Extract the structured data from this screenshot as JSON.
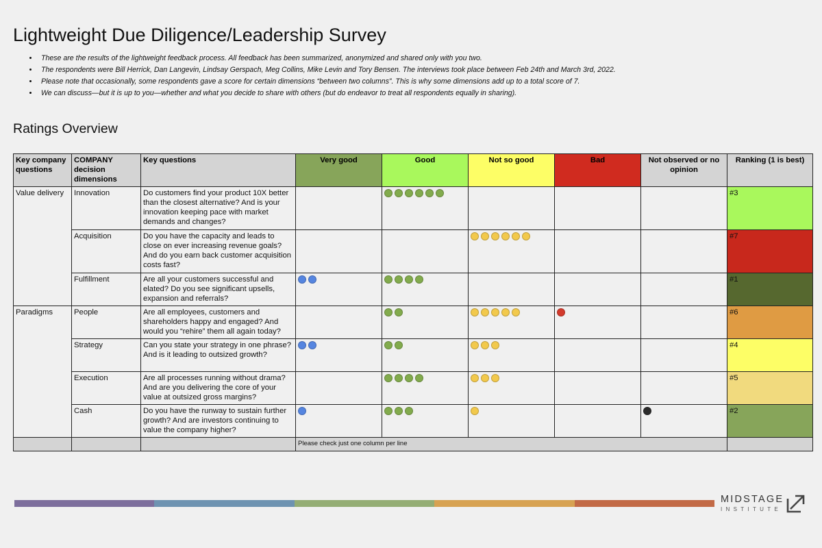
{
  "title": "Lightweight Due Diligence/Leadership Survey",
  "bullets": [
    "These are the results of the lightweight feedback process. All feedback has been summarized, anonymized and shared only with you two.",
    "The respondents were Bill Herrick, Dan Langevin, Lindsay Gerspach, Meg Collins, Mike Levin and Tory Bensen. The interviews took place between Feb 24th and March 3rd, 2022.",
    "Please note that occasionally, some respondents gave a score for certain dimensions “between two columns”. This is why some dimensions add up to a total score of 7.",
    "We can discuss—but it is up to you—whether and what you decide to share with others (but do endeavor to treat all respondents equally in sharing)."
  ],
  "subtitle": "Ratings Overview",
  "table": {
    "headers": [
      {
        "label": "Key company questions",
        "bg": "#d4d4d4",
        "color": "#000000",
        "align": "left"
      },
      {
        "label": "COMPANY decision dimensions",
        "bg": "#d4d4d4",
        "color": "#000000",
        "align": "left"
      },
      {
        "label": "Key questions",
        "bg": "#d4d4d4",
        "color": "#000000",
        "align": "left"
      },
      {
        "label": "Very good",
        "bg": "#87a55a",
        "color": "#000000",
        "align": "center"
      },
      {
        "label": "Good",
        "bg": "#a9f85c",
        "color": "#000000",
        "align": "center"
      },
      {
        "label": "Not so good",
        "bg": "#fdfe66",
        "color": "#000000",
        "align": "center"
      },
      {
        "label": "Bad",
        "bg": "#d02b1f",
        "color": "#000000",
        "align": "center"
      },
      {
        "label": "Not observed or no opinion",
        "bg": "#d4d4d4",
        "color": "#000000",
        "align": "center"
      },
      {
        "label": "Ranking (1 is best)",
        "bg": "#d4d4d4",
        "color": "#000000",
        "align": "center"
      }
    ],
    "groups": [
      {
        "name": "Value delivery",
        "rows": [
          {
            "dimension": "Innovation",
            "question": "Do customers find your product 10X better than the closest alternative? And is your innovation keeping pace with market demands and changes?",
            "very_good": 0,
            "good": 6,
            "not_so_good": 0,
            "bad": 0,
            "no_opinion": 0,
            "rank": "#3",
            "rank_color": "#a9f85c"
          },
          {
            "dimension": "Acquisition",
            "question": "Do you have the capacity and leads to close on ever increasing revenue goals? And do you earn back customer acquisition costs fast?",
            "very_good": 0,
            "good": 0,
            "not_so_good": 6,
            "bad": 0,
            "no_opinion": 0,
            "rank": "#7",
            "rank_color": "#c8281c"
          },
          {
            "dimension": "Fulfillment",
            "question": "Are all your customers successful and elated? Do you see significant upsells, expansion and referrals?",
            "very_good": 2,
            "good": 4,
            "not_so_good": 0,
            "bad": 0,
            "no_opinion": 0,
            "rank": "#1",
            "rank_color": "#56682f"
          }
        ]
      },
      {
        "name": "Paradigms",
        "rows": [
          {
            "dimension": "People",
            "question": "Are all employees, customers and shareholders happy and engaged? And would you “rehire” them all again today?",
            "very_good": 0,
            "good": 2,
            "not_so_good": 5,
            "bad": 1,
            "no_opinion": 0,
            "rank": "#6",
            "rank_color": "#df9b43"
          },
          {
            "dimension": "Strategy",
            "question": "Can you state your strategy in one phrase? And is it leading to outsized growth?",
            "very_good": 2,
            "good": 2,
            "not_so_good": 3,
            "bad": 0,
            "no_opinion": 0,
            "rank": "#4",
            "rank_color": "#fdfe66"
          },
          {
            "dimension": "Execution",
            "question": "Are all processes running without drama? And are you delivering the core of your value at outsized gross margins?",
            "very_good": 0,
            "good": 4,
            "not_so_good": 3,
            "bad": 0,
            "no_opinion": 0,
            "rank": "#5",
            "rank_color": "#f1da7e"
          },
          {
            "dimension": "Cash",
            "question": "Do you have the runway to sustain further growth? And are investors continuing to value the company higher?",
            "very_good": 1,
            "good": 3,
            "not_so_good": 1,
            "bad": 0,
            "no_opinion": 1,
            "rank": "#2",
            "rank_color": "#87a55a"
          }
        ]
      }
    ],
    "footer_note": "Please check just one column per line"
  },
  "dot_colors": {
    "very_good": "#5585e0",
    "good": "#82ab4d",
    "not_so_good": "#f2c94c",
    "bad": "#d33a2c",
    "no_opinion": "#2b2b2b"
  },
  "color_bar": [
    "#7d6e9c",
    "#6e93b1",
    "#94ad74",
    "#d7a252",
    "#c26a46"
  ],
  "logo": {
    "main": "MIDSTAGE",
    "sub": "INSTITUTE",
    "icon": "arrow-in-box-icon"
  }
}
